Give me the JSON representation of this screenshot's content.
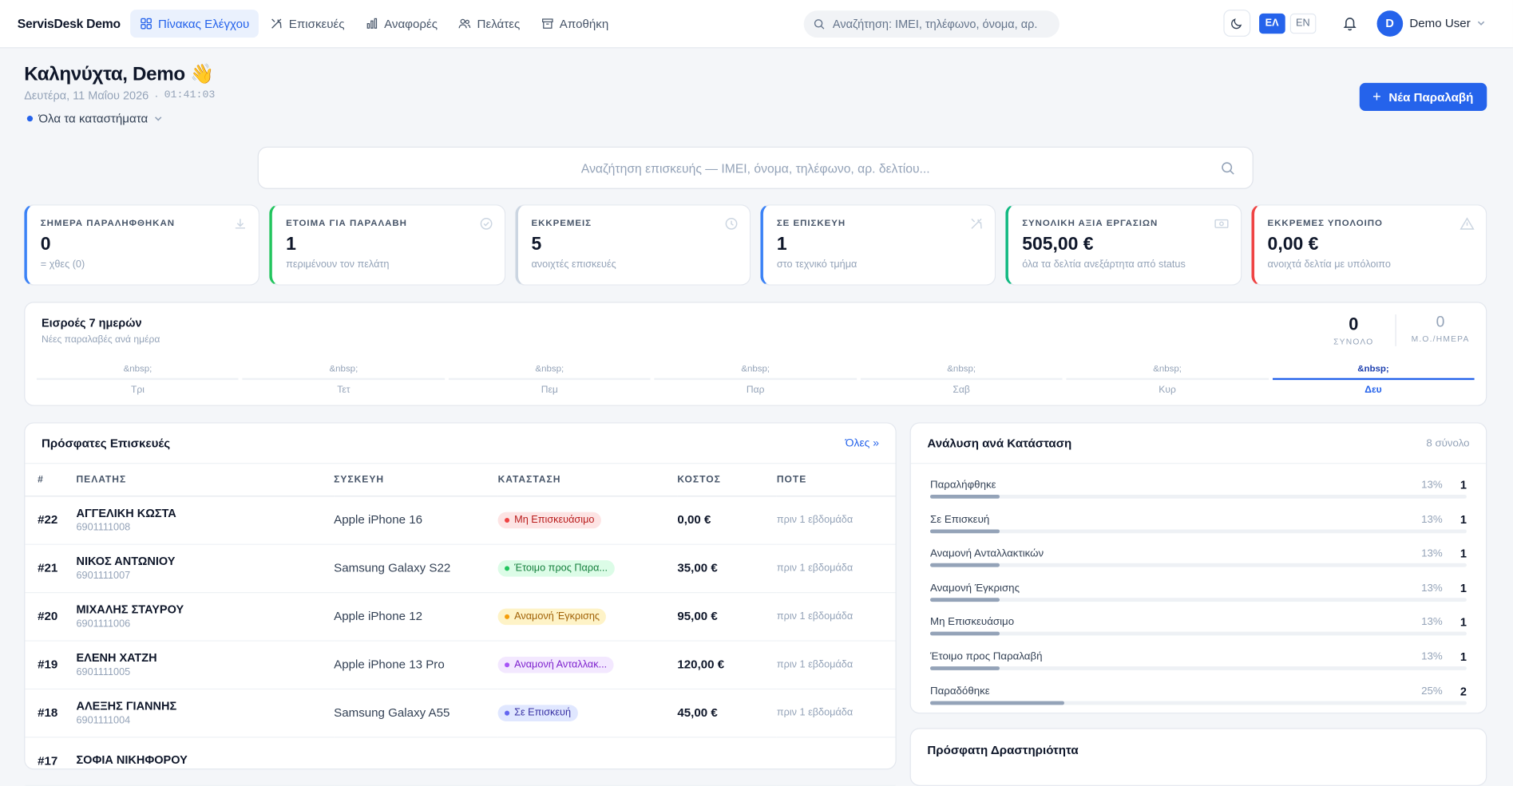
{
  "brand": "ServisDesk Demo",
  "nav": [
    {
      "label": "Πίνακας Ελέγχου",
      "icon": "grid-icon",
      "active": true
    },
    {
      "label": "Επισκευές",
      "icon": "tools-icon",
      "active": false
    },
    {
      "label": "Αναφορές",
      "icon": "chart-icon",
      "active": false
    },
    {
      "label": "Πελάτες",
      "icon": "users-icon",
      "active": false
    },
    {
      "label": "Αποθήκη",
      "icon": "archive-icon",
      "active": false
    }
  ],
  "search": {
    "placeholder": "Αναζήτηση: IMEI, τηλέφωνο, όνομα, αρ."
  },
  "lang": {
    "el": "ΕΛ",
    "en": "EN",
    "active": "ΕΛ"
  },
  "user": {
    "initial": "D",
    "name": "Demo User"
  },
  "greeting": {
    "title": "Καληνύχτα, Demo 👋",
    "date": "Δευτέρα, 11 Μαΐου 2026",
    "sep": "·",
    "time": "01:41:03"
  },
  "store_selector": "Όλα τα καταστήματα",
  "new_button": "Νέα Παραλαβή",
  "main_search": {
    "placeholder": "Αναζήτηση επισκευής — IMEI, όνομα, τηλέφωνο, αρ. δελτίου..."
  },
  "kpis": [
    {
      "label": "ΣΗΜΕΡΑ ΠΑΡΑΛΗΦΘΗΚΑΝ",
      "value": "0",
      "note": "= χθες (0)",
      "color": "#3b82f6",
      "icon": "download-icon"
    },
    {
      "label": "ΕΤΟΙΜΑ ΓΙΑ ΠΑΡΑΛΑΒΗ",
      "value": "1",
      "note": "περιμένουν τον πελάτη",
      "color": "#22c55e",
      "icon": "check-circle-icon"
    },
    {
      "label": "ΕΚΚΡΕΜΕΙΣ",
      "value": "5",
      "note": "ανοιχτές επισκευές",
      "color": "#cbd5e1",
      "icon": "clock-icon"
    },
    {
      "label": "ΣΕ ΕΠΙΣΚΕΥΗ",
      "value": "1",
      "note": "στο τεχνικό τμήμα",
      "color": "#3b82f6",
      "icon": "tools-icon"
    },
    {
      "label": "ΣΥΝΟΛΙΚΗ ΑΞΙΑ ΕΡΓΑΣΙΩΝ",
      "value": "505,00 €",
      "note": "όλα τα δελτία ανεξάρτητα από status",
      "color": "#10b981",
      "icon": "cash-icon"
    },
    {
      "label": "ΕΚΚΡΕΜΕΣ ΥΠΟΛΟΙΠΟ",
      "value": "0,00 €",
      "note": "ανοιχτά δελτία με υπόλοιπο",
      "color": "#ef4444",
      "icon": "warning-icon"
    }
  ],
  "intake": {
    "title": "Εισροές 7 ημερών",
    "subtitle": "Νέες παραλαβές ανά ημέρα",
    "total": "0",
    "total_label": "ΣΥΝΟΛΟ",
    "avg": "0",
    "avg_label": "Μ.Ο./ΗΜΕΡΑ",
    "days": [
      {
        "value": "&nbsp;",
        "label": "Τρι",
        "today": false
      },
      {
        "value": "&nbsp;",
        "label": "Τετ",
        "today": false
      },
      {
        "value": "&nbsp;",
        "label": "Πεμ",
        "today": false
      },
      {
        "value": "&nbsp;",
        "label": "Παρ",
        "today": false
      },
      {
        "value": "&nbsp;",
        "label": "Σαβ",
        "today": false
      },
      {
        "value": "&nbsp;",
        "label": "Κυρ",
        "today": false
      },
      {
        "value": "&nbsp;",
        "label": "Δευ",
        "today": true
      }
    ]
  },
  "recent": {
    "title": "Πρόσφατες Επισκευές",
    "all_link": "Όλες »",
    "columns": [
      "#",
      "ΠΕΛΑΤΗΣ",
      "ΣΥΣΚΕΥΗ",
      "ΚΑΤΑΣΤΑΣΗ",
      "ΚΟΣΤΟΣ",
      "ΠΟΤΕ"
    ],
    "rows": [
      {
        "num": "#22",
        "name": "ΑΓΓΕΛΙΚΗ ΚΩΣΤΑ",
        "phone": "6901111008",
        "device": "Apple iPhone 16",
        "status": "Μη Επισκευάσιμο",
        "bg": "#fde4e4",
        "fg": "#b91c1c",
        "dot": "#ef4444",
        "cost": "0,00 €",
        "when": "πριν 1 εβδομάδα"
      },
      {
        "num": "#21",
        "name": "ΝΙΚΟΣ ΑΝΤΩΝΙΟΥ",
        "phone": "6901111007",
        "device": "Samsung Galaxy S22",
        "status": "Έτοιμο προς Παρα...",
        "bg": "#dcfce7",
        "fg": "#15803d",
        "dot": "#22c55e",
        "cost": "35,00 €",
        "when": "πριν 1 εβδομάδα"
      },
      {
        "num": "#20",
        "name": "ΜΙΧΑΛΗΣ ΣΤΑΥΡΟΥ",
        "phone": "6901111006",
        "device": "Apple iPhone 12",
        "status": "Αναμονή Έγκρισης",
        "bg": "#fef3c7",
        "fg": "#a16207",
        "dot": "#f59e0b",
        "cost": "95,00 €",
        "when": "πριν 1 εβδομάδα"
      },
      {
        "num": "#19",
        "name": "ΕΛΕΝΗ ΧΑΤΖΗ",
        "phone": "6901111005",
        "device": "Apple iPhone 13 Pro",
        "status": "Αναμονή Ανταλλακ...",
        "bg": "#f3e8ff",
        "fg": "#7e22ce",
        "dot": "#a855f7",
        "cost": "120,00 €",
        "when": "πριν 1 εβδομάδα"
      },
      {
        "num": "#18",
        "name": "ΑΛΕΞΗΣ ΓΙΑΝΝΗΣ",
        "phone": "6901111004",
        "device": "Samsung Galaxy A55",
        "status": "Σε Επισκευή",
        "bg": "#e0e7ff",
        "fg": "#3730a3",
        "dot": "#6366f1",
        "cost": "45,00 €",
        "when": "πριν 1 εβδομάδα"
      },
      {
        "num": "#17",
        "name": "ΣΟΦΙΑ ΝΙΚΗΦΟΡΟΥ",
        "phone": "",
        "device": "",
        "status": "",
        "bg": "#dbeafe",
        "fg": "#1d4ed8",
        "dot": "#3b82f6",
        "cost": "",
        "when": ""
      }
    ]
  },
  "analysis": {
    "title": "Ανάλυση ανά Κατάσταση",
    "count": "8 σύνολο",
    "rows": [
      {
        "label": "Παραλήφθηκε",
        "pct": "13%",
        "count": "1",
        "frac": 0.13
      },
      {
        "label": "Σε Επισκευή",
        "pct": "13%",
        "count": "1",
        "frac": 0.13
      },
      {
        "label": "Αναμονή Ανταλλακτικών",
        "pct": "13%",
        "count": "1",
        "frac": 0.13
      },
      {
        "label": "Αναμονή Έγκρισης",
        "pct": "13%",
        "count": "1",
        "frac": 0.13
      },
      {
        "label": "Μη Επισκευάσιμο",
        "pct": "13%",
        "count": "1",
        "frac": 0.13
      },
      {
        "label": "Έτοιμο προς Παραλαβή",
        "pct": "13%",
        "count": "1",
        "frac": 0.13
      },
      {
        "label": "Παραδόθηκε",
        "pct": "25%",
        "count": "2",
        "frac": 0.25
      }
    ]
  },
  "activity": {
    "title": "Πρόσφατη Δραστηριότητα"
  }
}
